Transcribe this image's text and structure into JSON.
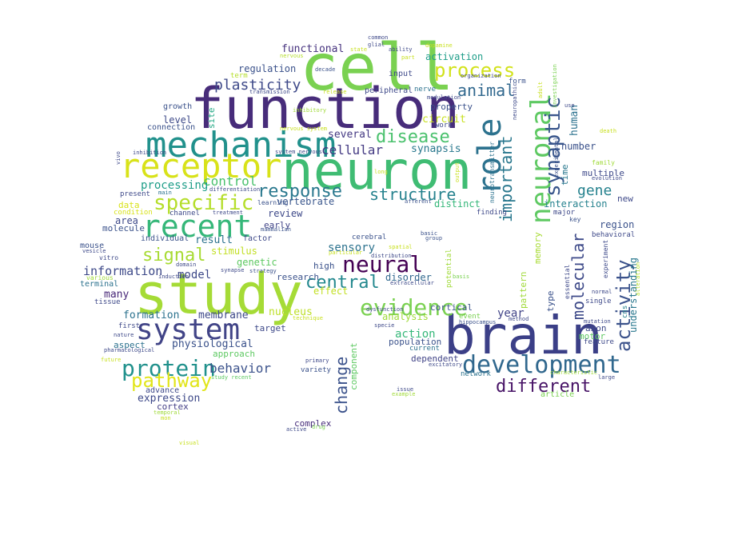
{
  "palette": {
    "background": "#ffffff",
    "word_colors": [
      "#440154",
      "#482878",
      "#3e4989",
      "#31688e",
      "#26828e",
      "#1f9e89",
      "#35b779",
      "#6ece58",
      "#b5de2b",
      "#fde725"
    ]
  },
  "cloud": {
    "words": [
      {
        "text": "function",
        "color": "#472c7a"
      },
      {
        "text": "cell",
        "color": "#7ad151"
      },
      {
        "text": "neuron",
        "color": "#3fbc73"
      },
      {
        "text": "brain",
        "color": "#3b3f87"
      },
      {
        "text": "study",
        "color": "#a5db36"
      },
      {
        "text": "mechanism",
        "color": "#21918c"
      },
      {
        "text": "receptor",
        "color": "#d8e219"
      },
      {
        "text": "system",
        "color": "#414487"
      },
      {
        "text": "neuronal",
        "color": "#5ec962"
      },
      {
        "text": "role",
        "color": "#2c728e"
      },
      {
        "text": "recent",
        "color": "#35b779"
      },
      {
        "text": "development",
        "color": "#31688e"
      },
      {
        "text": "evidence",
        "color": "#7ad151"
      },
      {
        "text": "neural",
        "color": "#440154"
      },
      {
        "text": "protein",
        "color": "#21918c"
      },
      {
        "text": "process",
        "color": "#d2e21b"
      },
      {
        "text": "specific",
        "color": "#b5de2b"
      },
      {
        "text": "synaptic",
        "color": "#39568c"
      },
      {
        "text": "activity",
        "color": "#3b528b"
      },
      {
        "text": "pathway",
        "color": "#e1e51a"
      },
      {
        "text": "different",
        "color": "#481467"
      },
      {
        "text": "molecular",
        "color": "#3e4a89"
      },
      {
        "text": "response",
        "color": "#2a788e"
      },
      {
        "text": "structure",
        "color": "#26828e"
      },
      {
        "text": "disease",
        "color": "#4ac16d"
      },
      {
        "text": "central",
        "color": "#23888e"
      },
      {
        "text": "important",
        "color": "#2a788e"
      },
      {
        "text": "animal",
        "color": "#31688e"
      },
      {
        "text": "signal",
        "color": "#a8db34"
      },
      {
        "text": "plasticity",
        "color": "#3e4989"
      },
      {
        "text": "change",
        "color": "#3b528b"
      },
      {
        "text": "gene",
        "color": "#26828e"
      },
      {
        "text": "cellular",
        "color": "#443a83"
      },
      {
        "text": "behavior",
        "color": "#3b528b"
      },
      {
        "text": "information",
        "color": "#3e4a89"
      },
      {
        "text": "control",
        "color": "#4ac16d"
      },
      {
        "text": "processing",
        "color": "#1f9e89"
      },
      {
        "text": "sensory",
        "color": "#2c728e"
      },
      {
        "text": "model",
        "color": "#3e4989"
      },
      {
        "text": "year",
        "color": "#414487"
      },
      {
        "text": "action",
        "color": "#35b779"
      },
      {
        "text": "functional",
        "color": "#46327e"
      },
      {
        "text": "circuit",
        "color": "#c8e020"
      },
      {
        "text": "synapsis",
        "color": "#2a788e"
      },
      {
        "text": "expression",
        "color": "#3e4989"
      },
      {
        "text": "membrane",
        "color": "#3e4989"
      },
      {
        "text": "activation",
        "color": "#1f9e89"
      },
      {
        "text": "regulation",
        "color": "#3b528b"
      },
      {
        "text": "vertebrate",
        "color": "#39568c"
      },
      {
        "text": "many",
        "color": "#482878"
      },
      {
        "text": "formation",
        "color": "#2c728e"
      },
      {
        "text": "physiological",
        "color": "#3b528b"
      },
      {
        "text": "human",
        "color": "#2c728e"
      },
      {
        "text": "several",
        "color": "#443983"
      },
      {
        "text": "distinct",
        "color": "#35b779"
      },
      {
        "text": "disorder",
        "color": "#31688e"
      },
      {
        "text": "nucleus",
        "color": "#bddf26"
      },
      {
        "text": "analysis",
        "color": "#a0da39"
      },
      {
        "text": "stimulus",
        "color": "#c2df23"
      },
      {
        "text": "genetic",
        "color": "#5ec962"
      },
      {
        "text": "result",
        "color": "#2c728e"
      },
      {
        "text": "level",
        "color": "#3e4a89"
      },
      {
        "text": "number",
        "color": "#3b528b"
      },
      {
        "text": "interaction",
        "color": "#26828e"
      },
      {
        "text": "understanding",
        "color": "#2a788e"
      },
      {
        "text": "region",
        "color": "#3b528b"
      },
      {
        "text": "pattern",
        "color": "#a0da39"
      },
      {
        "text": "memory",
        "color": "#a8db34"
      },
      {
        "text": "type",
        "color": "#3b528b"
      },
      {
        "text": "review",
        "color": "#3e4989"
      },
      {
        "text": "research",
        "color": "#3b528b"
      },
      {
        "text": "complex",
        "color": "#472d7b"
      },
      {
        "text": "component",
        "color": "#5ec962"
      },
      {
        "text": "time",
        "color": "#2a788e"
      },
      {
        "text": "multiple",
        "color": "#3e4989"
      },
      {
        "text": "new",
        "color": "#3e4989"
      },
      {
        "text": "property",
        "color": "#3b528b"
      },
      {
        "text": "site",
        "color": "#22a884"
      },
      {
        "text": "area",
        "color": "#3e4989"
      },
      {
        "text": "data",
        "color": "#d8e219"
      },
      {
        "text": "molecule",
        "color": "#3b528b"
      },
      {
        "text": "effect",
        "color": "#c2df23"
      },
      {
        "text": "target",
        "color": "#3e4989"
      },
      {
        "text": "approach",
        "color": "#5ec962"
      },
      {
        "text": "population",
        "color": "#3b528b"
      },
      {
        "text": "dependent",
        "color": "#414487"
      },
      {
        "text": "cortical",
        "color": "#3b528b"
      },
      {
        "text": "axon",
        "color": "#3e4989"
      },
      {
        "text": "motor",
        "color": "#5ec962"
      },
      {
        "text": "aspect",
        "color": "#2c728e"
      },
      {
        "text": "cortex",
        "color": "#433e85"
      },
      {
        "text": "advance",
        "color": "#3e4989"
      },
      {
        "text": "early",
        "color": "#414487"
      },
      {
        "text": "factor",
        "color": "#3e4989"
      },
      {
        "text": "individual",
        "color": "#3b528b"
      },
      {
        "text": "mouse",
        "color": "#3b528b"
      },
      {
        "text": "growth",
        "color": "#3b528b"
      },
      {
        "text": "connection",
        "color": "#3b528b"
      },
      {
        "text": "present",
        "color": "#3e4989"
      },
      {
        "text": "terminal",
        "color": "#2c728e"
      },
      {
        "text": "tissue",
        "color": "#3e4989"
      },
      {
        "text": "input",
        "color": "#3e4989"
      },
      {
        "text": "peripheral",
        "color": "#3e4989"
      },
      {
        "text": "nerve",
        "color": "#2c728e"
      },
      {
        "text": "work",
        "color": "#3e4989"
      },
      {
        "text": "form",
        "color": "#3b528b"
      },
      {
        "text": "key",
        "color": "#3b528b"
      },
      {
        "text": "major",
        "color": "#3e4989"
      },
      {
        "text": "single",
        "color": "#3e4989"
      },
      {
        "text": "high",
        "color": "#3b528b"
      },
      {
        "text": "current",
        "color": "#2c728e"
      },
      {
        "text": "variety",
        "color": "#3b528b"
      },
      {
        "text": "network",
        "color": "#2c728e"
      },
      {
        "text": "article",
        "color": "#7ad151"
      },
      {
        "text": "feature",
        "color": "#3e4989"
      },
      {
        "text": "cerebral",
        "color": "#3b528b"
      },
      {
        "text": "potential",
        "color": "#a0da39"
      },
      {
        "text": "event",
        "color": "#7ad151"
      },
      {
        "text": "channel",
        "color": "#3e4989"
      },
      {
        "text": "condition",
        "color": "#d8e219"
      },
      {
        "text": "vitro",
        "color": "#3e4989"
      },
      {
        "text": "first",
        "color": "#3e4989"
      },
      {
        "text": "essential",
        "color": "#3e4989"
      },
      {
        "text": "behavioral",
        "color": "#3e4989"
      },
      {
        "text": "experiment",
        "color": "#3e4989"
      },
      {
        "text": "cns",
        "color": "#26828e"
      },
      {
        "text": "finding",
        "color": "#3e4989"
      },
      {
        "text": "learning",
        "color": "#3b528b"
      },
      {
        "text": "afferent",
        "color": "#3b528b"
      },
      {
        "text": "neurotransmitter",
        "color": "#2c728e"
      },
      {
        "text": "experimental",
        "color": "#3b528b"
      },
      {
        "text": "family",
        "color": "#a0da39"
      },
      {
        "text": "treatment",
        "color": "#3e4989"
      },
      {
        "text": "differentiation",
        "color": "#3e4989"
      },
      {
        "text": "main",
        "color": "#2c728e"
      },
      {
        "text": "various",
        "color": "#a0da39"
      },
      {
        "text": "vesicle",
        "color": "#3e4989"
      },
      {
        "text": "domain",
        "color": "#3e4989"
      },
      {
        "text": "induction",
        "color": "#3e4989"
      },
      {
        "text": "synapse",
        "color": "#3e4989"
      },
      {
        "text": "strategy",
        "color": "#3b528b"
      },
      {
        "text": "mammalian",
        "color": "#3b528b"
      },
      {
        "text": "spatial",
        "color": "#c8e020"
      },
      {
        "text": "group",
        "color": "#3b528b"
      },
      {
        "text": "basic",
        "color": "#3b528b"
      },
      {
        "text": "particular",
        "color": "#c8e020"
      },
      {
        "text": "distribution",
        "color": "#3e4989"
      },
      {
        "text": "basis",
        "color": "#7ad151"
      },
      {
        "text": "extracellular",
        "color": "#3e4989"
      },
      {
        "text": "dysfunction",
        "color": "#3e4989"
      },
      {
        "text": "specie",
        "color": "#3e4989"
      },
      {
        "text": "hippocampus",
        "color": "#3b528b"
      },
      {
        "text": "method",
        "color": "#3e4989"
      },
      {
        "text": "mutation",
        "color": "#3e4989"
      },
      {
        "text": "normal",
        "color": "#3e4989"
      },
      {
        "text": "alteration",
        "color": "#b5de2b"
      },
      {
        "text": "excitatory",
        "color": "#3e4989"
      },
      {
        "text": "primary",
        "color": "#3e4989"
      },
      {
        "text": "issue",
        "color": "#3e4989"
      },
      {
        "text": "example",
        "color": "#a0da39"
      },
      {
        "text": "characteristic",
        "color": "#a0da39"
      },
      {
        "text": "large",
        "color": "#3e4989"
      },
      {
        "text": "pharmacological",
        "color": "#3e4989"
      },
      {
        "text": "nature",
        "color": "#3e4989"
      },
      {
        "text": "future",
        "color": "#c8e020"
      },
      {
        "text": "temporal",
        "color": "#a0da39"
      },
      {
        "text": "mon",
        "color": "#c8e020"
      },
      {
        "text": "study recent",
        "color": "#5ec962"
      },
      {
        "text": "visual",
        "color": "#c8e020"
      },
      {
        "text": "active",
        "color": "#3e4989"
      },
      {
        "text": "drug",
        "color": "#7ad151"
      },
      {
        "text": "system nervous",
        "color": "#3e4989"
      },
      {
        "text": "nervous system",
        "color": "#c8e020"
      },
      {
        "text": "transmission",
        "color": "#3e4989"
      },
      {
        "text": "inhibition",
        "color": "#3e4989"
      },
      {
        "text": "inhibitory",
        "color": "#a0da39"
      },
      {
        "text": "term",
        "color": "#b5de2b"
      },
      {
        "text": "nervous",
        "color": "#b5de2b"
      },
      {
        "text": "vivo",
        "color": "#3e4989"
      },
      {
        "text": "decade",
        "color": "#3b528b"
      },
      {
        "text": "release",
        "color": "#c8e020"
      },
      {
        "text": "ability",
        "color": "#3e4989"
      },
      {
        "text": "state",
        "color": "#c8e020"
      },
      {
        "text": "common",
        "color": "#3e4989"
      },
      {
        "text": "glial",
        "color": "#3e4989"
      },
      {
        "text": "dopamine",
        "color": "#c8e020"
      },
      {
        "text": "part",
        "color": "#c8e020"
      },
      {
        "text": "organization",
        "color": "#3e4989"
      },
      {
        "text": "modulation",
        "color": "#3e4989"
      },
      {
        "text": "evolution",
        "color": "#3e4989"
      },
      {
        "text": "death",
        "color": "#c8e020"
      },
      {
        "text": "investigation",
        "color": "#7ad151"
      },
      {
        "text": "adult",
        "color": "#c8e020"
      },
      {
        "text": "neuropathic",
        "color": "#3e4989"
      },
      {
        "text": "output",
        "color": "#c8e020"
      },
      {
        "text": "long",
        "color": "#c8e020"
      },
      {
        "text": "use",
        "color": "#3e4989"
      },
      {
        "text": "technique",
        "color": "#c8e020"
      }
    ]
  }
}
